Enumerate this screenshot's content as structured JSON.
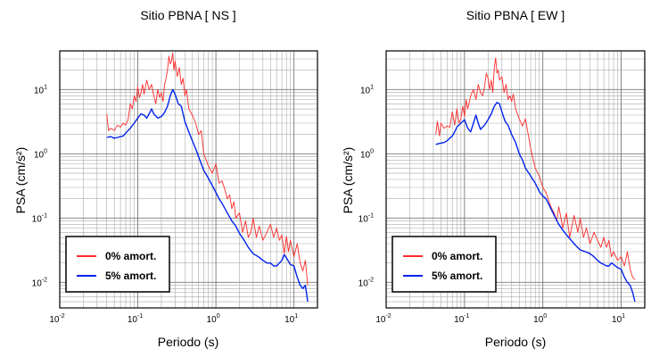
{
  "chart_data": [
    {
      "type": "line",
      "title": "Sitio PBNA [ NS ]",
      "xlabel": "Periodo (s)",
      "ylabel": "PSA (cm/s²)",
      "xscale": "log",
      "yscale": "log",
      "xlim": [
        0.01,
        20
      ],
      "ylim": [
        0.004,
        40
      ],
      "grid": true,
      "legend_position": "bottom-left",
      "x_ticks": [
        {
          "base": "10",
          "exp": "-2",
          "value": 0.01
        },
        {
          "base": "10",
          "exp": "-1",
          "value": 0.1
        },
        {
          "base": "10",
          "exp": "0",
          "value": 1
        },
        {
          "base": "10",
          "exp": "1",
          "value": 10
        }
      ],
      "y_ticks": [
        {
          "base": "10",
          "exp": "-2",
          "value": 0.01
        },
        {
          "base": "10",
          "exp": "-1",
          "value": 0.1
        },
        {
          "base": "10",
          "exp": "0",
          "value": 1
        },
        {
          "base": "10",
          "exp": "1",
          "value": 10
        }
      ],
      "series": [
        {
          "name": "0% amort.",
          "color": "#ff2a2a",
          "x": [
            0.04,
            0.042,
            0.045,
            0.05,
            0.055,
            0.06,
            0.065,
            0.07,
            0.075,
            0.08,
            0.085,
            0.09,
            0.095,
            0.1,
            0.105,
            0.11,
            0.115,
            0.12,
            0.13,
            0.14,
            0.15,
            0.16,
            0.17,
            0.18,
            0.19,
            0.2,
            0.21,
            0.22,
            0.23,
            0.24,
            0.25,
            0.26,
            0.27,
            0.28,
            0.29,
            0.3,
            0.32,
            0.34,
            0.36,
            0.38,
            0.4,
            0.42,
            0.45,
            0.5,
            0.55,
            0.6,
            0.65,
            0.7,
            0.75,
            0.8,
            0.9,
            1.0,
            1.1,
            1.2,
            1.3,
            1.4,
            1.5,
            1.6,
            1.7,
            1.8,
            2.0,
            2.2,
            2.4,
            2.6,
            2.8,
            3.0,
            3.3,
            3.6,
            4.0,
            4.5,
            5.0,
            5.5,
            6.0,
            6.5,
            7.0,
            7.5,
            8.0,
            8.5,
            9.0,
            10,
            11,
            12,
            13,
            14,
            15
          ],
          "y": [
            4.2,
            2.3,
            2.5,
            2.3,
            2.8,
            2.6,
            3.0,
            2.8,
            3.4,
            6.0,
            5.0,
            8.0,
            6.5,
            11.0,
            7.5,
            9.0,
            12.0,
            8.5,
            14.0,
            10.0,
            12.0,
            8.0,
            6.0,
            10.0,
            7.5,
            9.0,
            6.5,
            12.0,
            15.0,
            20.0,
            33.0,
            25.0,
            28.0,
            37.0,
            20.0,
            28.0,
            16.0,
            22.0,
            12.0,
            15.0,
            8.0,
            10.0,
            5.0,
            4.0,
            3.0,
            2.0,
            2.3,
            1.0,
            0.8,
            0.65,
            0.5,
            0.7,
            0.35,
            0.38,
            0.28,
            0.2,
            0.23,
            0.14,
            0.18,
            0.1,
            0.12,
            0.06,
            0.09,
            0.05,
            0.06,
            0.1,
            0.05,
            0.075,
            0.045,
            0.06,
            0.08,
            0.05,
            0.07,
            0.045,
            0.055,
            0.028,
            0.052,
            0.03,
            0.045,
            0.025,
            0.04,
            0.02,
            0.015,
            0.022,
            0.009
          ]
        },
        {
          "name": "5% amort.",
          "color": "#0022ee",
          "x": [
            0.04,
            0.045,
            0.05,
            0.055,
            0.06,
            0.065,
            0.07,
            0.075,
            0.08,
            0.09,
            0.1,
            0.11,
            0.12,
            0.13,
            0.14,
            0.15,
            0.16,
            0.18,
            0.2,
            0.22,
            0.24,
            0.26,
            0.28,
            0.3,
            0.33,
            0.36,
            0.4,
            0.45,
            0.5,
            0.55,
            0.6,
            0.7,
            0.8,
            0.9,
            1.0,
            1.1,
            1.2,
            1.4,
            1.6,
            1.8,
            2.0,
            2.3,
            2.6,
            3.0,
            3.5,
            4.0,
            4.5,
            5.0,
            5.5,
            6.0,
            6.5,
            7.0,
            7.5,
            8.0,
            9.0,
            10,
            11,
            12,
            13,
            14,
            15
          ],
          "y": [
            1.8,
            1.85,
            1.75,
            1.8,
            1.85,
            1.9,
            2.1,
            2.3,
            2.5,
            3.0,
            3.6,
            4.2,
            4.0,
            3.6,
            4.2,
            5.0,
            4.2,
            3.6,
            3.8,
            4.4,
            5.5,
            8.0,
            10.0,
            8.5,
            6.0,
            5.5,
            3.2,
            2.2,
            1.6,
            1.2,
            0.9,
            0.55,
            0.42,
            0.32,
            0.25,
            0.2,
            0.17,
            0.12,
            0.09,
            0.075,
            0.058,
            0.045,
            0.035,
            0.028,
            0.025,
            0.022,
            0.02,
            0.02,
            0.018,
            0.018,
            0.02,
            0.022,
            0.027,
            0.024,
            0.019,
            0.018,
            0.012,
            0.009,
            0.008,
            0.009,
            0.005
          ]
        }
      ]
    },
    {
      "type": "line",
      "title": "Sitio PBNA [ EW ]",
      "xlabel": "Periodo (s)",
      "ylabel": "PSA (cm/s²)",
      "xscale": "log",
      "yscale": "log",
      "xlim": [
        0.01,
        20
      ],
      "ylim": [
        0.004,
        40
      ],
      "grid": true,
      "legend_position": "bottom-left",
      "x_ticks": [
        {
          "base": "10",
          "exp": "-2",
          "value": 0.01
        },
        {
          "base": "10",
          "exp": "-1",
          "value": 0.1
        },
        {
          "base": "10",
          "exp": "0",
          "value": 1
        },
        {
          "base": "10",
          "exp": "1",
          "value": 10
        }
      ],
      "y_ticks": [
        {
          "base": "10",
          "exp": "-2",
          "value": 0.01
        },
        {
          "base": "10",
          "exp": "-1",
          "value": 0.1
        },
        {
          "base": "10",
          "exp": "0",
          "value": 1
        },
        {
          "base": "10",
          "exp": "1",
          "value": 10
        }
      ],
      "series": [
        {
          "name": "0% amort.",
          "color": "#ff2a2a",
          "x": [
            0.043,
            0.045,
            0.048,
            0.05,
            0.055,
            0.06,
            0.065,
            0.07,
            0.075,
            0.08,
            0.085,
            0.09,
            0.095,
            0.1,
            0.105,
            0.11,
            0.12,
            0.13,
            0.14,
            0.15,
            0.16,
            0.17,
            0.18,
            0.19,
            0.2,
            0.21,
            0.22,
            0.23,
            0.24,
            0.25,
            0.26,
            0.27,
            0.28,
            0.3,
            0.32,
            0.34,
            0.36,
            0.38,
            0.4,
            0.42,
            0.45,
            0.5,
            0.55,
            0.6,
            0.65,
            0.7,
            0.8,
            0.9,
            1.0,
            1.1,
            1.2,
            1.3,
            1.4,
            1.5,
            1.6,
            1.8,
            2.0,
            2.2,
            2.5,
            2.8,
            3.0,
            3.3,
            3.6,
            4.0,
            4.5,
            5.0,
            5.5,
            6.0,
            6.5,
            7.0,
            7.5,
            8.0,
            9.0,
            10,
            11,
            12,
            13,
            14,
            15
          ],
          "y": [
            2.0,
            3.2,
            1.9,
            3.0,
            2.5,
            2.7,
            2.6,
            4.5,
            2.8,
            5.0,
            3.0,
            3.5,
            5.5,
            3.8,
            7.0,
            5.0,
            8.0,
            10.0,
            7.0,
            12.0,
            9.0,
            8.0,
            11.0,
            18.0,
            15.0,
            10.0,
            14.0,
            9.0,
            22.0,
            31.0,
            18.0,
            20.0,
            14.0,
            16.0,
            9.0,
            12.0,
            7.0,
            8.0,
            6.5,
            8.5,
            5.0,
            3.5,
            2.7,
            3.5,
            2.0,
            1.2,
            0.6,
            0.45,
            0.3,
            0.25,
            0.18,
            0.14,
            0.12,
            0.09,
            0.15,
            0.07,
            0.12,
            0.05,
            0.11,
            0.06,
            0.1,
            0.05,
            0.07,
            0.04,
            0.06,
            0.045,
            0.035,
            0.05,
            0.035,
            0.045,
            0.025,
            0.03,
            0.022,
            0.025,
            0.018,
            0.03,
            0.016,
            0.012,
            0.011
          ]
        },
        {
          "name": "5% amort.",
          "color": "#0022ee",
          "x": [
            0.043,
            0.048,
            0.055,
            0.06,
            0.065,
            0.07,
            0.075,
            0.08,
            0.09,
            0.1,
            0.11,
            0.12,
            0.13,
            0.14,
            0.15,
            0.16,
            0.18,
            0.2,
            0.22,
            0.24,
            0.26,
            0.28,
            0.3,
            0.33,
            0.36,
            0.4,
            0.45,
            0.5,
            0.55,
            0.6,
            0.7,
            0.8,
            0.9,
            1.0,
            1.1,
            1.2,
            1.4,
            1.6,
            1.8,
            2.0,
            2.3,
            2.6,
            3.0,
            3.5,
            4.0,
            4.5,
            5.0,
            5.5,
            6.0,
            6.5,
            7.0,
            7.5,
            8.0,
            9.0,
            10,
            11,
            12,
            13,
            14,
            15
          ],
          "y": [
            1.4,
            1.45,
            1.5,
            1.6,
            1.75,
            1.9,
            2.2,
            2.6,
            3.0,
            3.4,
            2.5,
            2.2,
            3.0,
            4.0,
            3.0,
            2.4,
            2.8,
            3.4,
            4.2,
            5.5,
            6.3,
            6.0,
            4.5,
            3.2,
            2.8,
            2.0,
            1.5,
            1.0,
            0.8,
            0.6,
            0.45,
            0.35,
            0.26,
            0.22,
            0.2,
            0.16,
            0.11,
            0.08,
            0.065,
            0.055,
            0.045,
            0.038,
            0.032,
            0.03,
            0.028,
            0.025,
            0.022,
            0.02,
            0.019,
            0.018,
            0.018,
            0.02,
            0.019,
            0.017,
            0.016,
            0.012,
            0.01,
            0.009,
            0.007,
            0.005
          ]
        }
      ]
    }
  ]
}
